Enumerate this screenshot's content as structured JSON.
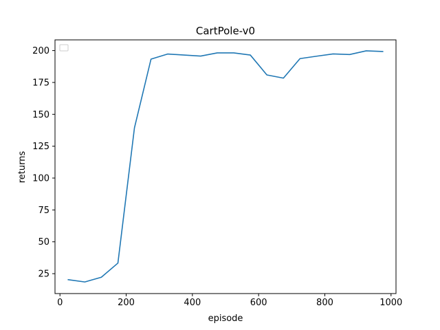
{
  "chart_data": {
    "type": "line",
    "title": "CartPole-v0",
    "xlabel": "episode",
    "ylabel": "returns",
    "xlim": [
      -15,
      1015
    ],
    "ylim": [
      9.4,
      208.4
    ],
    "xticks": [
      0,
      200,
      400,
      600,
      800,
      1000
    ],
    "yticks": [
      25,
      50,
      75,
      100,
      125,
      150,
      175,
      200
    ],
    "grid": false,
    "legend": {
      "placement": "top-left",
      "entries": []
    },
    "series": [
      {
        "color": "#1f77b4",
        "x": [
          25,
          75,
          125,
          175,
          225,
          275,
          325,
          375,
          425,
          475,
          525,
          575,
          625,
          675,
          725,
          775,
          825,
          875,
          925,
          975
        ],
        "y": [
          20.3,
          18.5,
          22.2,
          33.3,
          139.4,
          193.3,
          197.3,
          196.5,
          195.7,
          198.2,
          198.2,
          196.5,
          180.9,
          178.4,
          193.7,
          195.6,
          197.4,
          196.9,
          199.8,
          199.3
        ]
      }
    ]
  }
}
